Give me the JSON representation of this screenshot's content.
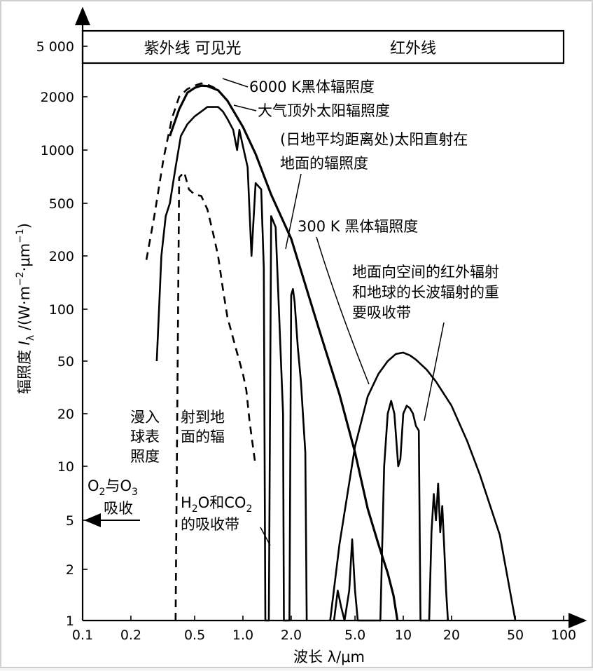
{
  "chart_data": {
    "type": "line",
    "x_scale": "log",
    "y_scale": "log",
    "xlabel": "波长 λ/μm",
    "ylabel": "辐照度 Iλ /(W·m⁻²·μm⁻¹)",
    "ylabel_parts": [
      "辐照度 ",
      "I",
      "λ",
      " /(W·m",
      "−2",
      "·μm",
      "−1",
      ")"
    ],
    "xlim": [
      0.1,
      100
    ],
    "ylim": [
      1,
      5000
    ],
    "x_ticks": [
      {
        "value": 0.1,
        "label": "0.1"
      },
      {
        "value": 0.2,
        "label": "0.2"
      },
      {
        "value": 0.5,
        "label": "0.5"
      },
      {
        "value": 1.0,
        "label": "1.0"
      },
      {
        "value": 2.0,
        "label": "2.0"
      },
      {
        "value": 5.0,
        "label": "5.0"
      },
      {
        "value": 10,
        "label": "10"
      },
      {
        "value": 20,
        "label": "20"
      },
      {
        "value": 50,
        "label": "50"
      },
      {
        "value": 100,
        "label": "100"
      }
    ],
    "y_ticks": [
      {
        "value": 1,
        "label": "1"
      },
      {
        "value": 2,
        "label": "2"
      },
      {
        "value": 5,
        "label": "5"
      },
      {
        "value": 10,
        "label": "10"
      },
      {
        "value": 20,
        "label": "20"
      },
      {
        "value": 50,
        "label": "50"
      },
      {
        "value": 100,
        "label": "100"
      },
      {
        "value": 200,
        "label": "200"
      },
      {
        "value": 500,
        "label": "500"
      },
      {
        "value": 1000,
        "label": "1000"
      },
      {
        "value": 2000,
        "label": "2000"
      },
      {
        "value": 5000,
        "label": "5 000"
      }
    ],
    "band_labels": {
      "uv_visible": "紫外线 可见光",
      "infrared": "红外线"
    },
    "series": [
      {
        "name": "6000 K黑体辐照度",
        "style": "solid-bold",
        "points": [
          [
            0.35,
            1200
          ],
          [
            0.4,
            1700
          ],
          [
            0.45,
            2150
          ],
          [
            0.5,
            2350
          ],
          [
            0.55,
            2450
          ],
          [
            0.6,
            2430
          ],
          [
            0.7,
            2250
          ],
          [
            0.8,
            1900
          ],
          [
            1.0,
            1350
          ],
          [
            1.2,
            950
          ],
          [
            1.5,
            560
          ],
          [
            2.0,
            270
          ],
          [
            3.0,
            75
          ],
          [
            4.0,
            28
          ],
          [
            5.0,
            12
          ],
          [
            6.0,
            5.8
          ],
          [
            7.0,
            3.2
          ],
          [
            8.0,
            1.9
          ],
          [
            8.7,
            1.4
          ],
          [
            9.2,
            1.0
          ]
        ]
      },
      {
        "name": "大气顶外太阳辐照度",
        "style": "dashed",
        "points": [
          [
            0.25,
            190
          ],
          [
            0.28,
            400
          ],
          [
            0.32,
            900
          ],
          [
            0.36,
            1500
          ],
          [
            0.4,
            2000
          ],
          [
            0.45,
            2300
          ],
          [
            0.5,
            2450
          ],
          [
            0.55,
            2550
          ],
          [
            0.6,
            2500
          ],
          [
            0.7,
            2280
          ]
        ]
      },
      {
        "name": "(日地平均距离处)太阳直射在地面的辐照度",
        "style": "solid",
        "points": [
          [
            0.29,
            50
          ],
          [
            0.31,
            200
          ],
          [
            0.33,
            400
          ],
          [
            0.35,
            500
          ],
          [
            0.38,
            800
          ],
          [
            0.41,
            1200
          ],
          [
            0.45,
            1400
          ],
          [
            0.5,
            1550
          ],
          [
            0.55,
            1650
          ],
          [
            0.6,
            1750
          ],
          [
            0.7,
            1750
          ],
          [
            0.75,
            1650
          ],
          [
            0.8,
            1500
          ],
          [
            0.87,
            1300
          ],
          [
            0.92,
            1000
          ],
          [
            0.95,
            1300
          ],
          [
            1.0,
            1050
          ],
          [
            1.07,
            800
          ],
          [
            1.13,
            200
          ],
          [
            1.2,
            650
          ],
          [
            1.3,
            600
          ],
          [
            1.35,
            170
          ],
          [
            1.38,
            1
          ],
          [
            1.45,
            1
          ],
          [
            1.5,
            400
          ],
          [
            1.6,
            330
          ],
          [
            1.78,
            20
          ],
          [
            1.8,
            1
          ],
          [
            1.95,
            1
          ],
          [
            2.0,
            120
          ],
          [
            2.05,
            130
          ],
          [
            2.1,
            110
          ],
          [
            2.2,
            60
          ],
          [
            2.3,
            35
          ],
          [
            2.45,
            12
          ],
          [
            2.5,
            1
          ]
        ]
      },
      {
        "name": "漫入射到地球表面的辐照度",
        "style": "dashed",
        "points": [
          [
            0.38,
            1
          ],
          [
            0.4,
            700
          ],
          [
            0.43,
            750
          ],
          [
            0.46,
            600
          ],
          [
            0.5,
            560
          ],
          [
            0.55,
            550
          ],
          [
            0.6,
            450
          ],
          [
            0.65,
            300
          ],
          [
            0.7,
            200
          ],
          [
            0.75,
            130
          ],
          [
            0.8,
            90
          ],
          [
            0.9,
            60
          ],
          [
            1.0,
            40
          ],
          [
            1.05,
            30
          ],
          [
            1.1,
            18
          ],
          [
            1.2,
            10
          ]
        ]
      },
      {
        "name": "300 K黑体辐照度",
        "style": "solid",
        "points": [
          [
            3.5,
            1
          ],
          [
            4.0,
            3.2
          ],
          [
            5.0,
            13
          ],
          [
            6.0,
            27
          ],
          [
            7.0,
            40
          ],
          [
            8.0,
            50
          ],
          [
            9.0,
            55
          ],
          [
            10,
            56
          ],
          [
            11,
            54
          ],
          [
            12,
            51
          ],
          [
            14,
            43
          ],
          [
            16,
            35
          ],
          [
            20,
            23
          ],
          [
            25,
            14
          ],
          [
            30,
            9
          ],
          [
            40,
            3.8
          ],
          [
            50,
            1.0
          ]
        ]
      },
      {
        "name": "地面向空间的红外辐射",
        "style": "solid",
        "points": [
          [
            3.7,
            1
          ],
          [
            3.9,
            1.5
          ],
          [
            4.1,
            1.2
          ],
          [
            4.3,
            1
          ],
          [
            4.6,
            1.5
          ],
          [
            4.8,
            3.5
          ],
          [
            5.0,
            1.5
          ],
          [
            5.2,
            1
          ],
          [
            7.2,
            1
          ],
          [
            7.6,
            10
          ],
          [
            8.0,
            20
          ],
          [
            8.4,
            25
          ],
          [
            8.8,
            20
          ],
          [
            9.3,
            10
          ],
          [
            9.6,
            11
          ],
          [
            10.0,
            20
          ],
          [
            10.5,
            23
          ],
          [
            11,
            22
          ],
          [
            11.5,
            20
          ],
          [
            12,
            17
          ],
          [
            12.5,
            16
          ],
          [
            12.8,
            1
          ],
          [
            14.5,
            1
          ],
          [
            15.0,
            4
          ],
          [
            15.5,
            7
          ],
          [
            16,
            5
          ],
          [
            16.5,
            8
          ],
          [
            17,
            4
          ],
          [
            17.5,
            6
          ],
          [
            18,
            3
          ],
          [
            18.5,
            1.5
          ],
          [
            19,
            1
          ]
        ]
      }
    ],
    "annotations": [
      {
        "text": "6000 K黑体辐照度"
      },
      {
        "text": "大气顶外太阳辐照度"
      },
      {
        "text": "(日地平均距离处)太阳直射在"
      },
      {
        "text": "地面的辐照度"
      },
      {
        "text": "300 K 黑体辐照度"
      },
      {
        "text": "地面向空间的红外辐射"
      },
      {
        "text": "和地球的长波辐射的重"
      },
      {
        "text": "要吸收带"
      },
      {
        "text": "漫入"
      },
      {
        "text": "球表"
      },
      {
        "text": "照度"
      },
      {
        "text": "射到地"
      },
      {
        "text": "面的辐"
      },
      {
        "text": "O₂与O₃"
      },
      {
        "text": "吸收"
      },
      {
        "text": "H₂O和CO₂"
      },
      {
        "text": "的吸收带"
      }
    ],
    "o2o3_parts": [
      "O",
      "2",
      "与O",
      "3"
    ],
    "h2o_parts": [
      "H",
      "2",
      "O和CO",
      "2"
    ],
    "colors": {
      "line": "#000000",
      "frame_border": "#cccccc",
      "background": "#ffffff"
    }
  }
}
